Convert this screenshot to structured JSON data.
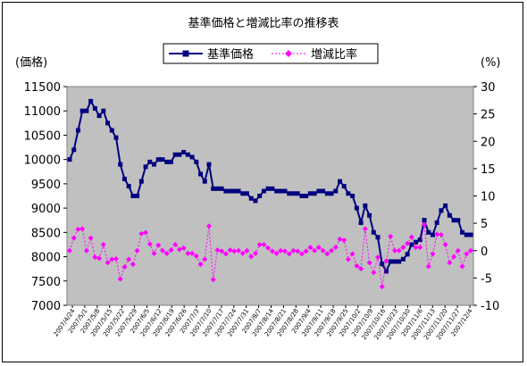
{
  "chart_data": {
    "type": "line",
    "title": "基準価格と増減比率の推移表",
    "y_left_label": "(価格)",
    "y_right_label": "(%)",
    "y_left_ticks": [
      "11500",
      "11000",
      "10500",
      "10000",
      "9500",
      "9000",
      "8500",
      "8000",
      "7500",
      "7000"
    ],
    "y_right_ticks": [
      "30",
      "25",
      "20",
      "15",
      "10",
      "5",
      "0",
      "-5",
      "-10"
    ],
    "y_left_range": [
      7000,
      11500
    ],
    "y_right_range": [
      -10,
      30
    ],
    "x_tick_labels": [
      "2007/4/24",
      "2007/5/1",
      "2007/5/8",
      "2007/5/15",
      "2007/5/22",
      "2007/5/29",
      "2007/6/5",
      "2007/6/12",
      "2007/6/19",
      "2007/6/26",
      "2007/7/3",
      "2007/7/10",
      "2007/7/17",
      "2007/7/24",
      "2007/7/31",
      "2007/8/7",
      "2007/8/14",
      "2007/8/21",
      "2007/8/28",
      "2007/9/4",
      "2007/9/11",
      "2007/9/18",
      "2007/9/25",
      "2007/10/2",
      "2007/10/9",
      "2007/10/16",
      "2007/10/23",
      "2007/10/30",
      "2007/11/6",
      "2007/11/13",
      "2007/11/20",
      "2007/11/27",
      "2007/12/4"
    ],
    "legend_position": "top-center",
    "grid": false,
    "plot_background": "#c0c0c0",
    "series": [
      {
        "name": "基準価格",
        "axis": "left",
        "color": "#000080",
        "values": [
          10000,
          10200,
          10600,
          11000,
          11000,
          11200,
          11050,
          10900,
          11000,
          10750,
          10600,
          10450,
          9900,
          9600,
          9450,
          9250,
          9250,
          9550,
          9850,
          9950,
          9900,
          10000,
          10000,
          9950,
          9950,
          10100,
          10100,
          10150,
          10100,
          10050,
          9950,
          9700,
          9550,
          9900,
          9400,
          9400,
          9400,
          9350,
          9350,
          9350,
          9350,
          9300,
          9300,
          9200,
          9150,
          9250,
          9350,
          9400,
          9400,
          9350,
          9350,
          9350,
          9300,
          9300,
          9300,
          9250,
          9250,
          9300,
          9300,
          9350,
          9350,
          9300,
          9300,
          9350,
          9550,
          9450,
          9300,
          9250,
          9000,
          8700,
          9050,
          8850,
          8500,
          8400,
          7850,
          7700,
          7900,
          7900,
          7900,
          7950,
          8050,
          8250,
          8300,
          8350,
          8750,
          8500,
          8450,
          8700,
          8950,
          9050,
          8850,
          8750,
          8750,
          8500,
          8450,
          8450
        ]
      },
      {
        "name": "増減比率",
        "axis": "right",
        "color": "#ff00ff",
        "values": [
          0,
          2.3,
          3.9,
          4.0,
          0,
          2.3,
          -1.2,
          -1.4,
          1.1,
          -2.2,
          -1.6,
          -1.5,
          -5.2,
          -3.0,
          -1.6,
          -2.5,
          0,
          3.1,
          3.3,
          1.2,
          -0.5,
          1.0,
          0,
          -0.5,
          0.1,
          1.1,
          0.2,
          0.5,
          -0.5,
          -0.5,
          -1.0,
          -2.5,
          -1.6,
          4.5,
          -5.3,
          0.1,
          -0.1,
          -0.6,
          0.1,
          -0.1,
          0,
          -0.5,
          0,
          -1.1,
          -0.5,
          1.1,
          1.1,
          0.5,
          -0.1,
          -0.5,
          0,
          -0.1,
          -0.6,
          0,
          -0.1,
          -0.6,
          -0.1,
          0.6,
          0,
          0.6,
          0,
          -0.6,
          0,
          0.6,
          2.1,
          1.9,
          -1.6,
          -0.6,
          -2.8,
          -3.3,
          4.0,
          -2.2,
          -4.0,
          -1.2,
          -6.6,
          -1.9,
          2.6,
          0,
          0,
          0.6,
          1.3,
          2.5,
          0.6,
          0.6,
          4.8,
          -2.9,
          -0.6,
          3.0,
          2.9,
          1.1,
          -2.2,
          -1.1,
          0,
          -2.9,
          -0.6,
          0
        ]
      }
    ]
  }
}
